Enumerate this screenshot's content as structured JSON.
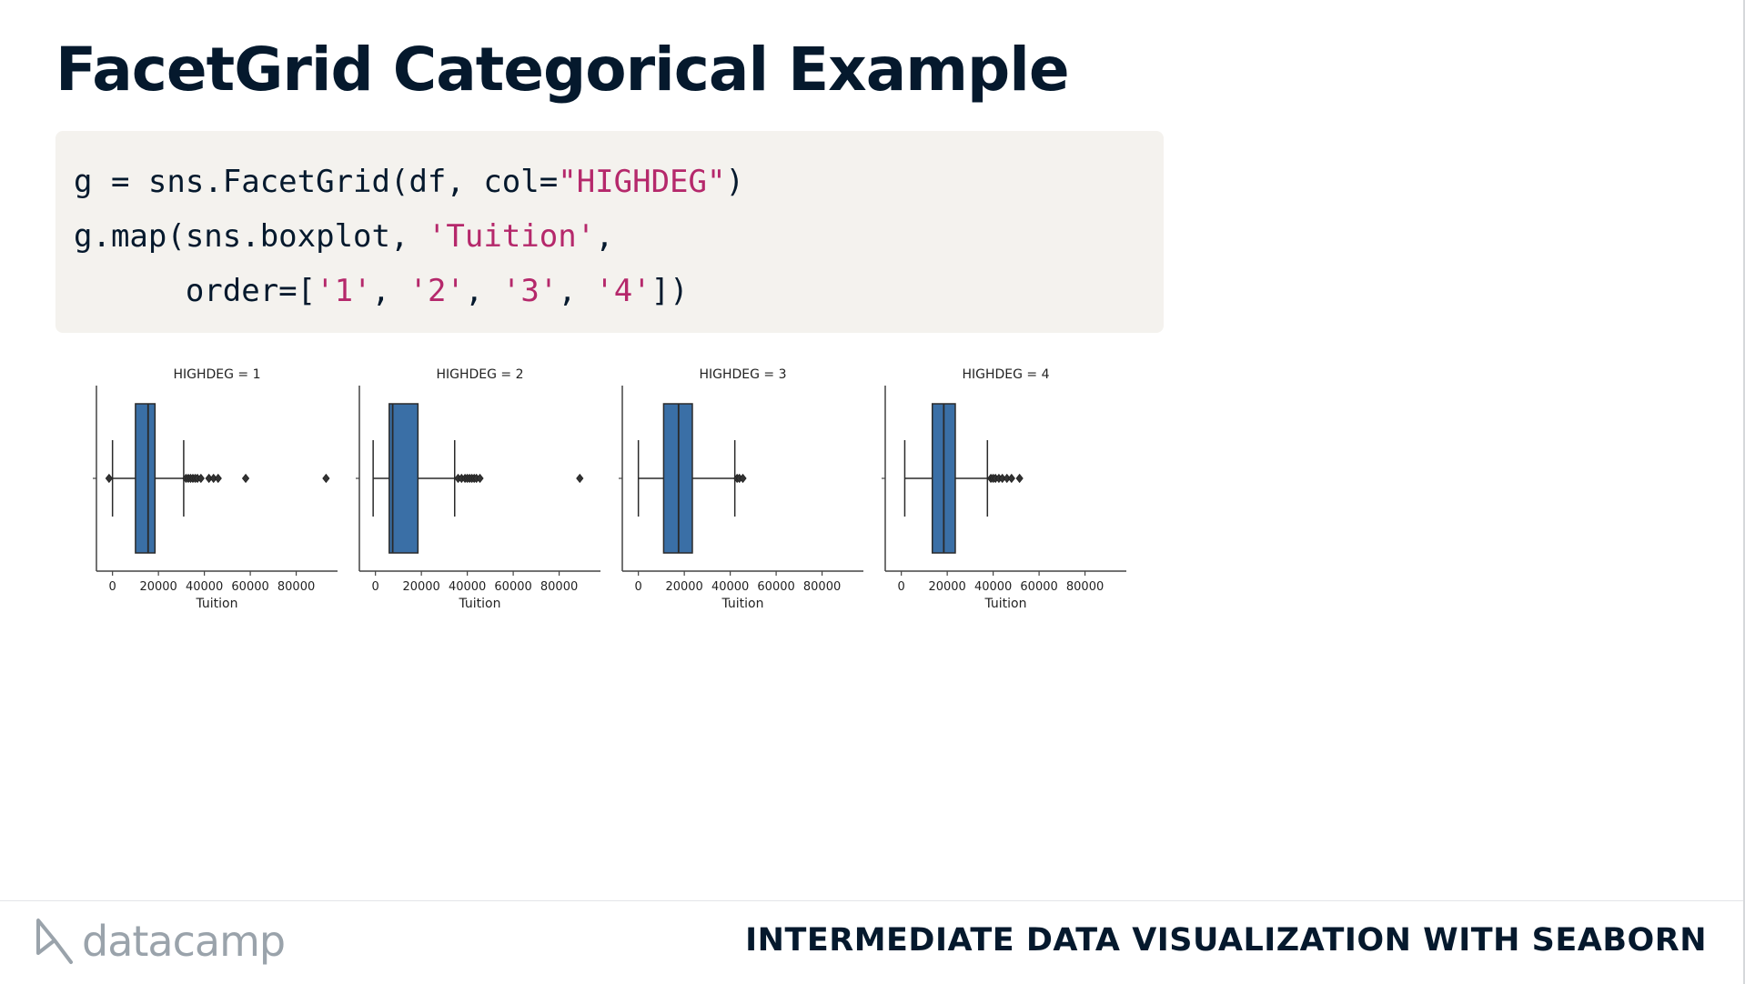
{
  "slide": {
    "title": "FacetGrid Categorical Example",
    "course_title": "INTERMEDIATE DATA VISUALIZATION WITH SEABORN",
    "logo_text": "datacamp"
  },
  "code": {
    "line1_a": "g = sns.FacetGrid(df, col=",
    "line1_b": "\"HIGHDEG\"",
    "line1_c": ")",
    "line2_a": "g.map(sns.boxplot, ",
    "line2_b": "'Tuition'",
    "line2_c": ",",
    "line3_a": "      order=[",
    "line3_b": "'1'",
    "line3_c": ", ",
    "line3_d": "'2'",
    "line3_e": ", ",
    "line3_f": "'3'",
    "line3_g": ", ",
    "line3_h": "'4'",
    "line3_i": "])"
  },
  "colors": {
    "box_fill": "#3a6fa6",
    "box_stroke": "#2a2a2a",
    "axis": "#444444",
    "text": "#05192d",
    "string": "#b5286b"
  },
  "chart_data": {
    "type": "boxplot",
    "xlabel": "Tuition",
    "xlim": [
      -7000,
      98000
    ],
    "xticks": [
      0,
      20000,
      40000,
      60000,
      80000
    ],
    "xtick_labels": [
      "0",
      "20000",
      "40000",
      "60000",
      "80000"
    ],
    "facets": [
      {
        "title": "HIGHDEG = 1",
        "whisker_low": 0,
        "q1": 10000,
        "median": 15500,
        "q3": 18500,
        "whisker_high": 31000,
        "outliers": [
          -1500,
          32000,
          33000,
          34000,
          35000,
          36000,
          37000,
          38500,
          42000,
          44000,
          46000,
          58000,
          93000
        ]
      },
      {
        "title": "HIGHDEG = 2",
        "whisker_low": -1000,
        "q1": 6000,
        "median": 7500,
        "q3": 18500,
        "whisker_high": 34500,
        "outliers": [
          36000,
          37500,
          39000,
          40000,
          41000,
          42000,
          43000,
          44000,
          45500,
          89000
        ]
      },
      {
        "title": "HIGHDEG = 3",
        "whisker_low": 0,
        "q1": 11000,
        "median": 17500,
        "q3": 23500,
        "whisker_high": 42000,
        "outliers": [
          43000,
          44000,
          45500
        ]
      },
      {
        "title": "HIGHDEG = 4",
        "whisker_low": 1500,
        "q1": 13500,
        "median": 18500,
        "q3": 23500,
        "whisker_high": 37500,
        "outliers": [
          39000,
          40000,
          41000,
          42500,
          44000,
          46000,
          48000,
          51500
        ]
      }
    ]
  }
}
